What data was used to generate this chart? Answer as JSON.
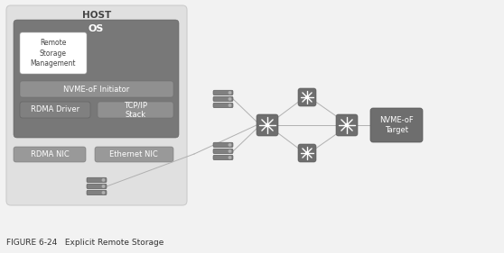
{
  "bg_color": "#f2f2f2",
  "host_box_color": "#e0e0e0",
  "os_box_color": "#787878",
  "rsm_box_color": "#ffffff",
  "nvmeof_init_color": "#909090",
  "rdma_driver_color": "#808080",
  "tcpip_color": "#909090",
  "nic_box_color": "#999999",
  "switch_color": "#6e6e6e",
  "storage_color": "#808080",
  "nvme_target_color": "#6e6e6e",
  "line_color": "#b0b0b0",
  "title": "HOST",
  "os_label": "OS",
  "rsm_label": "Remote\nStorage\nManagement",
  "nvmeof_init_label": "NVME-oF Initiator",
  "rdma_driver_label": "RDMA Driver",
  "tcpip_label": "TCP/IP\nStack",
  "rdma_nic_label": "RDMA NIC",
  "eth_nic_label": "Ethernet NIC",
  "nvme_target_label": "NVME-oF\nTarget",
  "caption": "FIGURE 6-24   Explicit Remote Storage"
}
